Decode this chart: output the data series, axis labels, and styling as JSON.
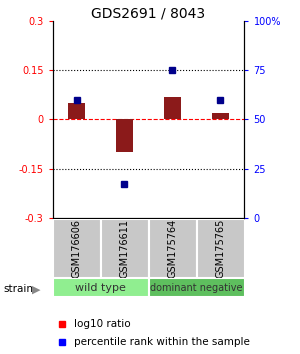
{
  "title": "GDS2691 / 8043",
  "samples": [
    "GSM176606",
    "GSM176611",
    "GSM175764",
    "GSM175765"
  ],
  "log10_ratios": [
    0.05,
    -0.1,
    0.07,
    0.02
  ],
  "percentile_ranks": [
    60,
    17,
    75,
    60
  ],
  "groups": [
    {
      "label": "wild type",
      "span": [
        0,
        2
      ],
      "color": "#90EE90"
    },
    {
      "label": "dominant negative",
      "span": [
        2,
        4
      ],
      "color": "#5EBF5E"
    }
  ],
  "ylim_left": [
    -0.3,
    0.3
  ],
  "ylim_right": [
    0,
    100
  ],
  "yticks_left": [
    -0.3,
    -0.15,
    0,
    0.15,
    0.3
  ],
  "ytick_labels_left": [
    "-0.3",
    "-0.15",
    "0",
    "0.15",
    "0.3"
  ],
  "yticks_right": [
    0,
    25,
    50,
    75,
    100
  ],
  "ytick_labels_right": [
    "0",
    "25",
    "50",
    "75",
    "100%"
  ],
  "hlines_dotted": [
    -0.15,
    0.15
  ],
  "hline_dashed": 0,
  "bar_color": "#8B1A1A",
  "dot_color": "#00008B",
  "bar_width": 0.35,
  "dot_size": 5,
  "legend_red_label": "log10 ratio",
  "legend_blue_label": "percentile rank within the sample",
  "strain_label": "strain",
  "sample_box_color": "#C8C8C8",
  "title_fontsize": 10,
  "tick_fontsize": 7,
  "legend_fontsize": 7.5,
  "sample_fontsize": 7,
  "group_fontsize": 8
}
